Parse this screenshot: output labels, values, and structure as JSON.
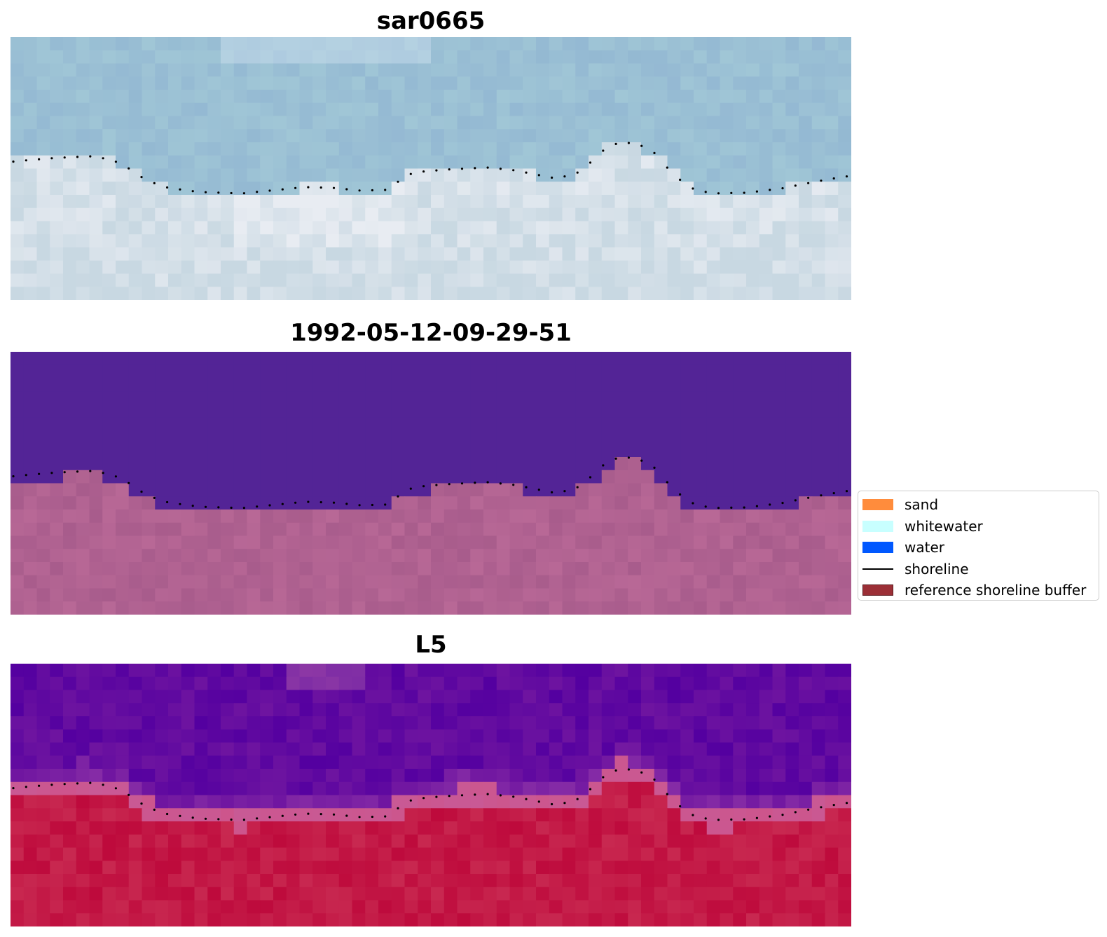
{
  "panels": [
    {
      "title": "sar0665"
    },
    {
      "title": "1992-05-12-09-29-51"
    },
    {
      "title": "L5"
    }
  ],
  "legend": {
    "items": [
      {
        "label": "sand",
        "color": "#ff8c3c",
        "kind": "patch"
      },
      {
        "label": "whitewater",
        "color": "#c8ffff",
        "kind": "patch"
      },
      {
        "label": "water",
        "color": "#0058ff",
        "kind": "patch"
      },
      {
        "label": "shoreline",
        "color": "#000000",
        "kind": "line"
      },
      {
        "label": "reference shoreline buffer",
        "color": "#9b2f36",
        "kind": "patch"
      }
    ]
  }
}
